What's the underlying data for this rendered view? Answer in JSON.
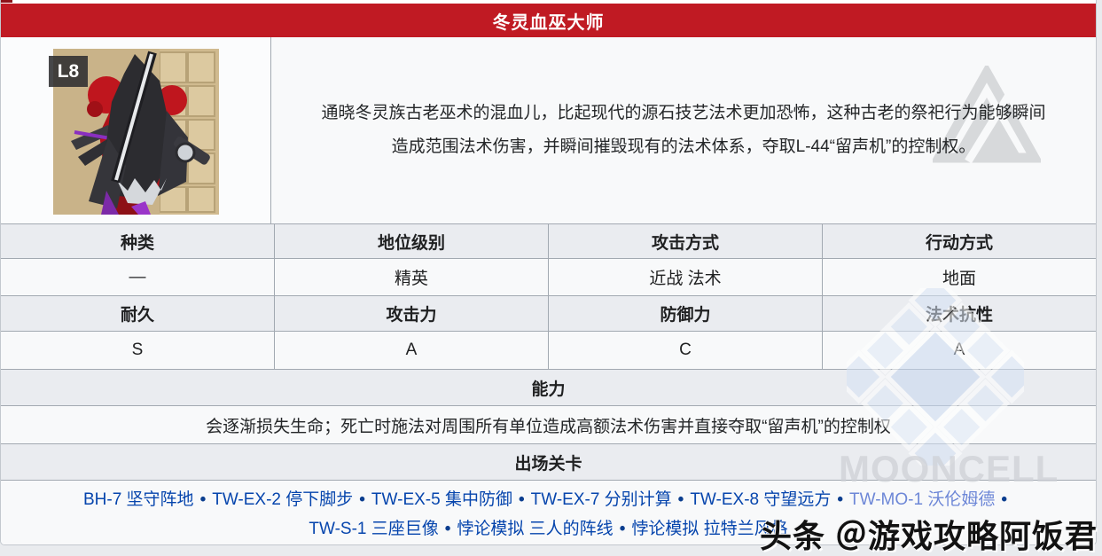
{
  "page": {
    "title": "冬灵血巫大师"
  },
  "portrait": {
    "badge": "L8",
    "image_name": "enemy-portrait-冬灵血巫大师"
  },
  "description": {
    "lines": [
      "通晓冬灵族古老巫术的混血儿，比起现代的源石技艺法术更加恐怖，这种古老的祭祀行为能够瞬间",
      "造成范围法术伤害，并瞬间摧毁现有的法术体系，夺取L-44“留声机”的控制权。"
    ]
  },
  "stats": {
    "rows": [
      {
        "headers": [
          "种类",
          "地位级别",
          "攻击方式",
          "行动方式"
        ],
        "values": [
          "—",
          "精英",
          "近战 法术",
          "地面"
        ]
      },
      {
        "headers": [
          "耐久",
          "攻击力",
          "防御力",
          "法术抗性"
        ],
        "values": [
          "S",
          "A",
          "C",
          "A"
        ]
      }
    ]
  },
  "ability": {
    "header": "能力",
    "text": "会逐渐损失生命；死亡时施法对周围所有单位造成高额法术伤害并直接夺取“留声机”的控制权"
  },
  "stages": {
    "header": "出场关卡",
    "separator": "•",
    "links": [
      {
        "label": "BH-7 坚守阵地"
      },
      {
        "label": "TW-EX-2 停下脚步"
      },
      {
        "label": "TW-EX-5 集中防御"
      },
      {
        "label": "TW-EX-7 分别计算"
      },
      {
        "label": "TW-EX-8 守望远方"
      },
      {
        "label": "TW-MO-1 沃伦姆德",
        "variant": "light",
        "break_after": true
      },
      {
        "label": "TW-S-1 三座巨像"
      },
      {
        "label": "悖论模拟 三人的阵线"
      },
      {
        "label": "悖论模拟 拉特兰风格"
      }
    ]
  },
  "watermarks": {
    "mooncell_text": "MOONCELL",
    "toutiao": "头条 ＠游戏攻略阿饭君"
  },
  "colors": {
    "accent_red": "#c01a23",
    "header_gray": "#eaecf0",
    "row_light": "#f8f9fa",
    "border_gray": "#a2a9b1",
    "link_blue": "#0645ad",
    "link_light_blue": "#6d87d7",
    "badge_dark": "#2e2e30"
  }
}
